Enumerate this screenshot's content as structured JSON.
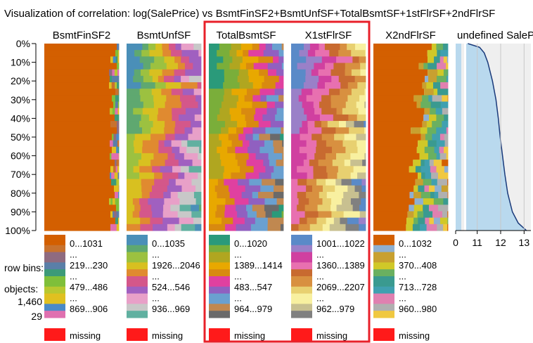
{
  "title": "Visualization of correlation: log(SalePrice) vs BsmtFinSF2+BsmtUnfSF+TotalBsmtSF+1stFlrSF+2ndFlrSF",
  "side_labels": {
    "row_bins": "row bins:",
    "objects": "objects:",
    "objects_value": "1,460",
    "row_bins_value": "29"
  },
  "colors": {
    "highlight": "#e8202a",
    "missing": "#ff1a1a",
    "bsmtfin_base": "#d35f00",
    "hist_fill": "#b9d9ee",
    "hist_bg": "#efefef",
    "hist_line": "#1a3a7a"
  },
  "chart_data": {
    "type": "heatmap",
    "title": "Visualization of correlation: log(SalePrice) vs BsmtFinSF2+BsmtUnfSF+TotalBsmtSF+1stFlrSF+2ndFlrSF",
    "row_axis": {
      "ticks": [
        "0%",
        "10%",
        "20%",
        "30%",
        "40%",
        "50%",
        "60%",
        "70%",
        "80%",
        "90%",
        "100%"
      ]
    },
    "sorted_by": "SalePrice",
    "sort_marker": "▼",
    "columns": [
      {
        "name": "BsmtFinSF2",
        "legend": [
          "0...1031",
          "...",
          "219...230",
          "...",
          "479...486",
          "...",
          "869...906"
        ],
        "missing": "missing"
      },
      {
        "name": "BsmtUnfSF",
        "legend": [
          "0...1035",
          "...",
          "1926...2046",
          "...",
          "524...546",
          "...",
          "936...969"
        ],
        "missing": "missing"
      },
      {
        "name": "TotalBsmtSF",
        "legend": [
          "0...1020",
          "...",
          "1389...1414",
          "...",
          "483...547",
          "...",
          "964...979"
        ],
        "missing": "missing",
        "highlighted": true
      },
      {
        "name": "X1stFlrSF",
        "legend": [
          "1001...1022",
          "...",
          "1360...1389",
          "...",
          "2069...2207",
          "...",
          "962...979"
        ],
        "missing": "missing",
        "highlighted": true
      },
      {
        "name": "X2ndFlrSF",
        "legend": [
          "0...1032",
          "...",
          "370...408",
          "...",
          "713...728",
          "...",
          "960...980"
        ],
        "missing": "missing"
      }
    ],
    "target": {
      "name": "SalePrice",
      "x_ticks": [
        "0",
        "11",
        "12",
        "13"
      ],
      "x_values": [
        0,
        11,
        12,
        13
      ],
      "curve": [
        [
          0.0,
          10.6
        ],
        [
          0.02,
          11.1
        ],
        [
          0.05,
          11.3
        ],
        [
          0.1,
          11.45
        ],
        [
          0.2,
          11.65
        ],
        [
          0.3,
          11.8
        ],
        [
          0.4,
          11.9
        ],
        [
          0.5,
          11.98
        ],
        [
          0.6,
          12.08
        ],
        [
          0.7,
          12.18
        ],
        [
          0.8,
          12.3
        ],
        [
          0.9,
          12.5
        ],
        [
          0.96,
          12.75
        ],
        [
          1.0,
          13.1
        ]
      ]
    }
  }
}
